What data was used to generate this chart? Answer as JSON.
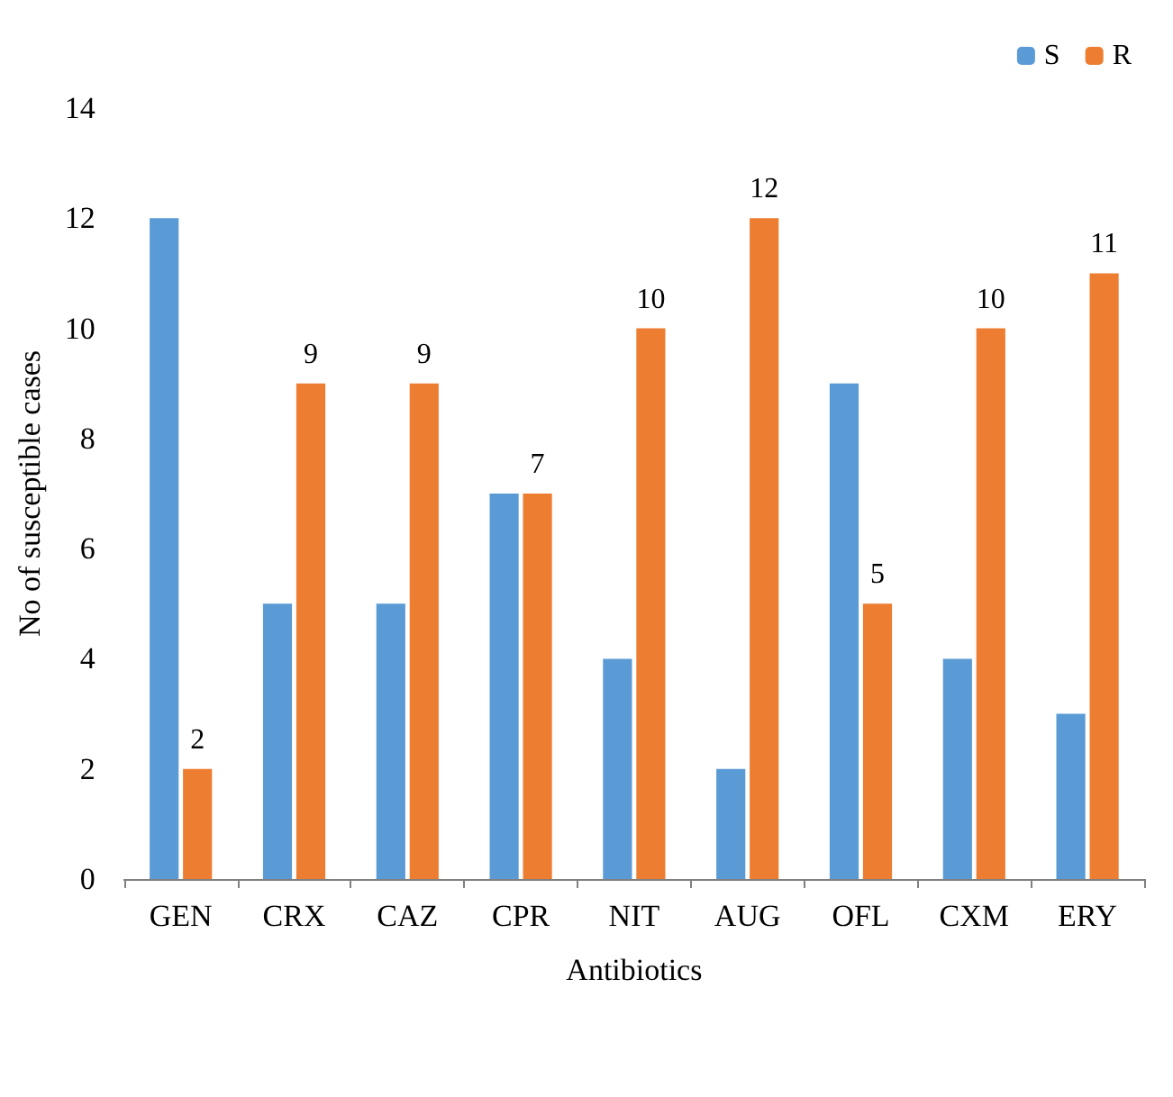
{
  "chart_data": {
    "type": "bar",
    "xlabel": "Antibiotics",
    "ylabel": "No of susceptible cases",
    "categories": [
      "GEN",
      "CRX",
      "CAZ",
      "CPR",
      "NIT",
      "AUG",
      "OFL",
      "CXM",
      "ERY"
    ],
    "series": [
      {
        "name": "S",
        "color": "#5b9bd5",
        "values": [
          12,
          5,
          5,
          7,
          4,
          2,
          9,
          4,
          3
        ]
      },
      {
        "name": "R",
        "color": "#ed7d31",
        "values": [
          2,
          9,
          9,
          7,
          10,
          12,
          5,
          10,
          11
        ],
        "value_labels": [
          "2",
          "9",
          "9",
          "7",
          "10",
          "12",
          "5",
          "10",
          "11"
        ]
      }
    ],
    "ylim": [
      0,
      14
    ],
    "yticks": [
      0,
      2,
      4,
      6,
      8,
      10,
      12,
      14
    ],
    "grid": false,
    "legend": "top right"
  }
}
